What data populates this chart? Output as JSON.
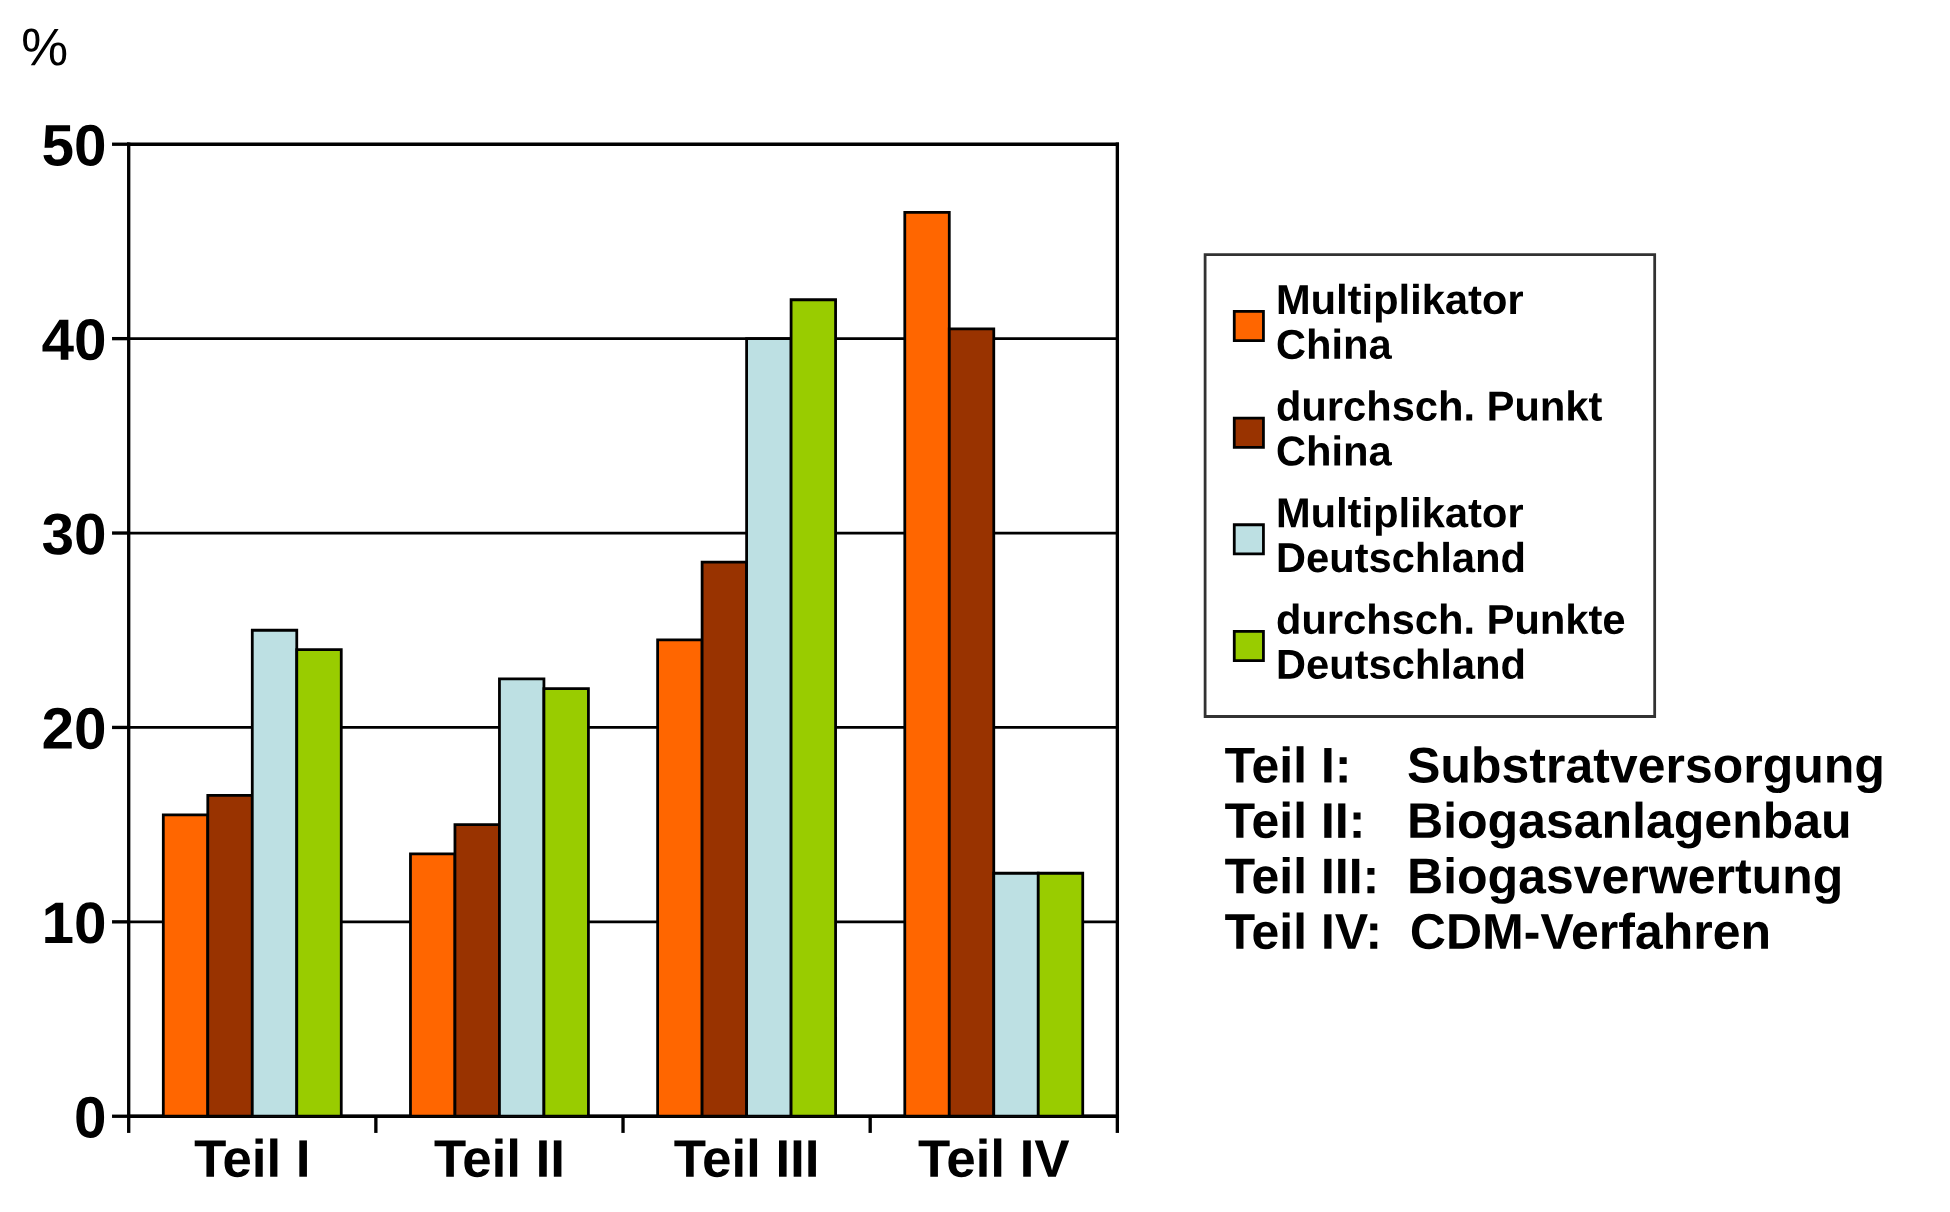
{
  "chart_data": {
    "type": "bar",
    "ylabel": "%",
    "categories": [
      "Teil I",
      "Teil II",
      "Teil III",
      "Teil IV"
    ],
    "series": [
      {
        "name": "Multiplikator China",
        "color": "#ff6600",
        "values": [
          15.5,
          13.5,
          24.5,
          46.5
        ]
      },
      {
        "name": "durchsch. Punkt China",
        "color": "#993300",
        "values": [
          16.5,
          15,
          28.5,
          40.5
        ]
      },
      {
        "name": "Multiplikator Deutschland",
        "color": "#bde0e3",
        "values": [
          25,
          22.5,
          40,
          12.5
        ]
      },
      {
        "name": "durchsch. Punkte Deutschland",
        "color": "#99cc00",
        "values": [
          24,
          22,
          42,
          12.5
        ]
      }
    ],
    "ylim": [
      0,
      50
    ],
    "yticks": [
      0,
      10,
      20,
      30,
      40,
      50
    ],
    "grid": "y",
    "legend": "right",
    "annotations": [
      "Teil I:    Substratversorgung",
      "Teil II:   Biogasanlagenbau",
      "Teil III:  Biogasverwertung",
      "Teil IV:  CDM-Verfahren"
    ]
  }
}
